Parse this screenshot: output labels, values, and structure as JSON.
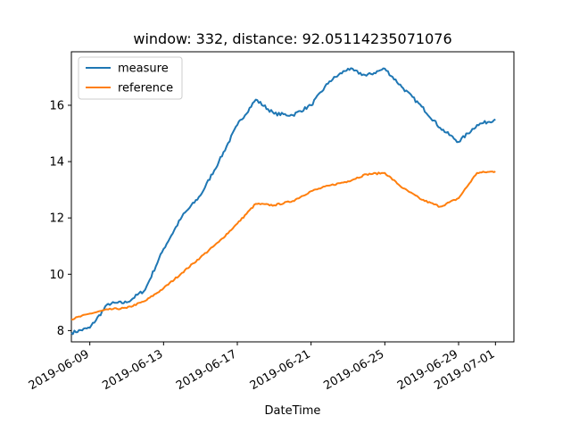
{
  "chart_data": {
    "type": "line",
    "title": "window: 332, distance: 92.05114235071076",
    "xlabel": "DateTime",
    "ylabel": "",
    "x_ticks": [
      "2019-06-09",
      "2019-06-13",
      "2019-06-17",
      "2019-06-21",
      "2019-06-25",
      "2019-06-29",
      "2019-07-01"
    ],
    "y_ticks": [
      "8",
      "10",
      "12",
      "14",
      "16"
    ],
    "xlim": [
      "2019-06-08",
      "2019-07-02"
    ],
    "ylim": [
      7.6,
      17.9
    ],
    "legend_position": "top-left",
    "series": [
      {
        "name": "measure",
        "color": "#1f77b4",
        "points": [
          [
            "2019-06-08",
            7.92
          ],
          [
            "2019-06-09",
            8.1
          ],
          [
            "2019-06-10",
            8.95
          ],
          [
            "2019-06-11",
            9.0
          ],
          [
            "2019-06-12",
            9.45
          ],
          [
            "2019-06-13",
            10.9
          ],
          [
            "2019-06-14",
            12.05
          ],
          [
            "2019-06-15",
            12.8
          ],
          [
            "2019-06-16",
            14.0
          ],
          [
            "2019-06-17",
            15.3
          ],
          [
            "2019-06-18",
            16.2
          ],
          [
            "2019-06-19",
            15.7
          ],
          [
            "2019-06-20",
            15.65
          ],
          [
            "2019-06-21",
            16.0
          ],
          [
            "2019-06-22",
            16.85
          ],
          [
            "2019-06-23",
            17.3
          ],
          [
            "2019-06-24",
            17.05
          ],
          [
            "2019-06-25",
            17.3
          ],
          [
            "2019-06-26",
            16.6
          ],
          [
            "2019-06-27",
            15.95
          ],
          [
            "2019-06-28",
            15.2
          ],
          [
            "2019-06-29",
            14.7
          ],
          [
            "2019-06-30",
            15.3
          ],
          [
            "2019-07-01",
            15.5
          ]
        ]
      },
      {
        "name": "reference",
        "color": "#ff7f0e",
        "points": [
          [
            "2019-06-08",
            8.4
          ],
          [
            "2019-06-09",
            8.6
          ],
          [
            "2019-06-10",
            8.75
          ],
          [
            "2019-06-11",
            8.8
          ],
          [
            "2019-06-12",
            9.05
          ],
          [
            "2019-06-13",
            9.5
          ],
          [
            "2019-06-14",
            10.05
          ],
          [
            "2019-06-15",
            10.6
          ],
          [
            "2019-06-16",
            11.15
          ],
          [
            "2019-06-17",
            11.8
          ],
          [
            "2019-06-18",
            12.5
          ],
          [
            "2019-06-19",
            12.45
          ],
          [
            "2019-06-20",
            12.6
          ],
          [
            "2019-06-21",
            12.95
          ],
          [
            "2019-06-22",
            13.15
          ],
          [
            "2019-06-23",
            13.3
          ],
          [
            "2019-06-24",
            13.55
          ],
          [
            "2019-06-25",
            13.6
          ],
          [
            "2019-06-26",
            13.05
          ],
          [
            "2019-06-27",
            12.65
          ],
          [
            "2019-06-28",
            12.4
          ],
          [
            "2019-06-29",
            12.7
          ],
          [
            "2019-06-30",
            13.6
          ],
          [
            "2019-07-01",
            13.65
          ]
        ]
      }
    ]
  }
}
